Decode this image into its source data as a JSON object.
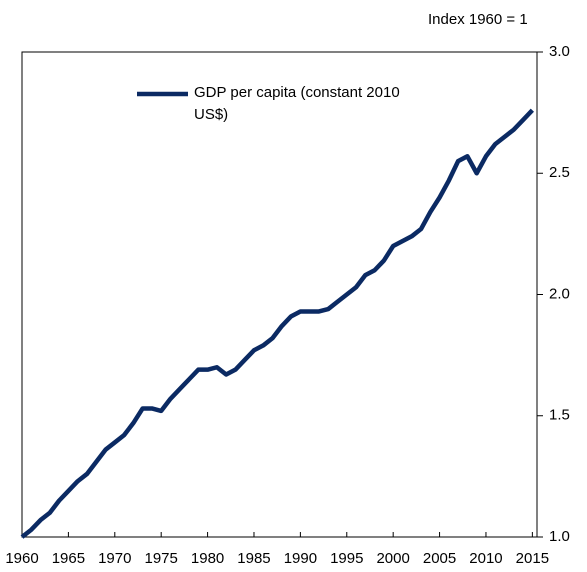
{
  "chart_data": {
    "type": "line",
    "y_axis_label": "Index 1960 = 1",
    "x": [
      1960,
      1961,
      1962,
      1963,
      1964,
      1965,
      1966,
      1967,
      1968,
      1969,
      1970,
      1971,
      1972,
      1973,
      1974,
      1975,
      1976,
      1977,
      1978,
      1979,
      1980,
      1981,
      1982,
      1983,
      1984,
      1985,
      1986,
      1987,
      1988,
      1989,
      1990,
      1991,
      1992,
      1993,
      1994,
      1995,
      1996,
      1997,
      1998,
      1999,
      2000,
      2001,
      2002,
      2003,
      2004,
      2005,
      2006,
      2007,
      2008,
      2009,
      2010,
      2011,
      2012,
      2013,
      2014,
      2015
    ],
    "series": [
      {
        "name": "GDP per capita (constant 2010 US$)",
        "color": "#0b2a63",
        "values": [
          1.0,
          1.03,
          1.07,
          1.1,
          1.15,
          1.19,
          1.23,
          1.26,
          1.31,
          1.36,
          1.39,
          1.42,
          1.47,
          1.53,
          1.53,
          1.52,
          1.57,
          1.61,
          1.65,
          1.69,
          1.69,
          1.7,
          1.67,
          1.69,
          1.73,
          1.77,
          1.79,
          1.82,
          1.87,
          1.91,
          1.93,
          1.93,
          1.93,
          1.94,
          1.97,
          2.0,
          2.03,
          2.08,
          2.1,
          2.14,
          2.2,
          2.22,
          2.24,
          2.27,
          2.34,
          2.4,
          2.47,
          2.55,
          2.57,
          2.5,
          2.57,
          2.62,
          2.65,
          2.68,
          2.72,
          2.76
        ]
      }
    ],
    "xlim": [
      1960,
      2015.5
    ],
    "xticks": [
      1960,
      1965,
      1970,
      1975,
      1980,
      1985,
      1990,
      1995,
      2000,
      2005,
      2010,
      2015
    ],
    "ylim": [
      1,
      3
    ],
    "yticks": [
      {
        "value": 1,
        "label": "1.0"
      },
      1.5,
      {
        "value": 2,
        "label": "2.0"
      },
      2.5,
      {
        "value": 3,
        "label": "3.0"
      }
    ],
    "y_axis_side": "right",
    "grid": false
  }
}
